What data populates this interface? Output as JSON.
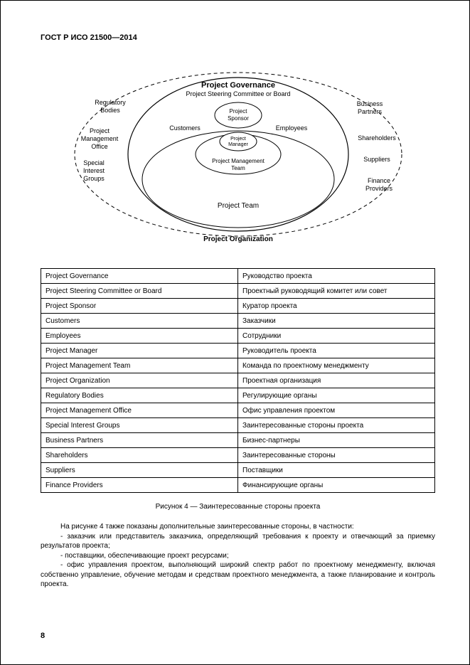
{
  "header": "ГОСТ Р ИСО 21500—2014",
  "diagram": {
    "top_title": "Project Governance",
    "top_sub": "Project Steering Committee or Board",
    "center_top": "Project\nSponsor",
    "center_bottom": "Project\nManager",
    "mgmt_team": "Project Management\nTeam",
    "team": "Project Team",
    "org": "Project Organization",
    "labels": {
      "reg_bodies": "Regulatory\nBodies",
      "pmo": "Project\nManagement\nOffice",
      "sig": "Special\nInterest\nGroups",
      "customers": "Customers",
      "employees": "Employees",
      "biz_partners": "Business\nPartners",
      "shareholders": "Shareholders",
      "suppliers": "Suppliers",
      "finance": "Finance\nProviders"
    },
    "colors": {
      "stroke": "#000000",
      "text": "#000000",
      "dash": "4 4"
    },
    "fontsize": {
      "title": 11,
      "label": 9,
      "small": 8
    }
  },
  "table": {
    "rows": [
      [
        "Project Governance",
        "Руководство проекта"
      ],
      [
        "Project Steering Committee or Board",
        "Проектный руководящий комитет или совет"
      ],
      [
        "Project Sponsor",
        "Куратор проекта"
      ],
      [
        "Customers",
        "Заказчики"
      ],
      [
        "Employees",
        "Сотрудники"
      ],
      [
        "Project Manager",
        "Руководитель проекта"
      ],
      [
        "Project Management Team",
        "Команда по проектному менеджменту"
      ],
      [
        "Project Organization",
        "Проектная организация"
      ],
      [
        "Regulatory Bodies",
        "Регулирующие органы"
      ],
      [
        "Project Management Office",
        "Офис управления проектом"
      ],
      [
        "Special Interest Groups",
        "Заинтересованные стороны проекта"
      ],
      [
        "Business Partners",
        "Бизнес-партнеры"
      ],
      [
        "Shareholders",
        "Заинтересованные стороны"
      ],
      [
        "Suppliers",
        "Поставщики"
      ],
      [
        "Finance Providers",
        "Финансирующие органы"
      ]
    ]
  },
  "caption": "Рисунок 4 — Заинтересованные стороны проекта",
  "paragraphs": [
    "На рисунке 4 также показаны дополнительные заинтересованные стороны, в частности:",
    "- заказчик или представитель заказчика, определяющий требования к проекту и отвечающий за приемку результатов проекта;",
    "- поставщики, обеспечивающие проект ресурсами;",
    "- офис управления проектом, выполняющий широкий спектр работ по проектному менеджменту, включая собственно управление, обучение методам и средствам проектного менеджмента, а также планирование и контроль проекта."
  ],
  "page_number": "8"
}
